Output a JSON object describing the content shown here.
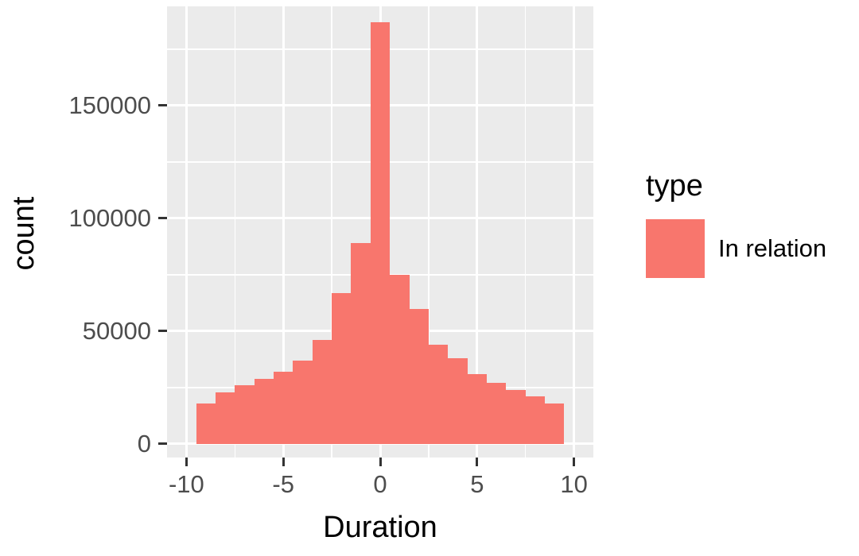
{
  "chart_data": {
    "type": "bar",
    "subtype": "histogram",
    "title": "",
    "xlabel": "Duration",
    "ylabel": "count",
    "legend_title": "type",
    "legend_entries": [
      {
        "label": "In relation",
        "color": "#F8766D"
      }
    ],
    "bar_color": "#F8766D",
    "panel_bg": "#EBEBEB",
    "grid_color": "#FFFFFF",
    "tick_color": "#333333",
    "bin_width": 1,
    "x": [
      -9,
      -8,
      -7,
      -6,
      -5,
      -4,
      -3,
      -2,
      -1,
      0,
      1,
      2,
      3,
      4,
      5,
      6,
      7,
      8,
      9
    ],
    "values": [
      18000,
      23000,
      26000,
      29000,
      32000,
      37000,
      46000,
      67000,
      89000,
      187000,
      75000,
      60000,
      44000,
      38000,
      31000,
      27000,
      24000,
      21000,
      18000
    ],
    "x_ticks": [
      -10,
      -5,
      0,
      5,
      10
    ],
    "y_ticks": [
      0,
      50000,
      100000,
      150000
    ],
    "x_minor": [
      -7.5,
      -2.5,
      2.5,
      7.5
    ],
    "y_minor": [
      25000,
      75000,
      125000,
      175000
    ],
    "xlim": [
      -11,
      11
    ],
    "ylim": [
      -6000,
      194000
    ],
    "grid": true,
    "legend_position": "right"
  }
}
